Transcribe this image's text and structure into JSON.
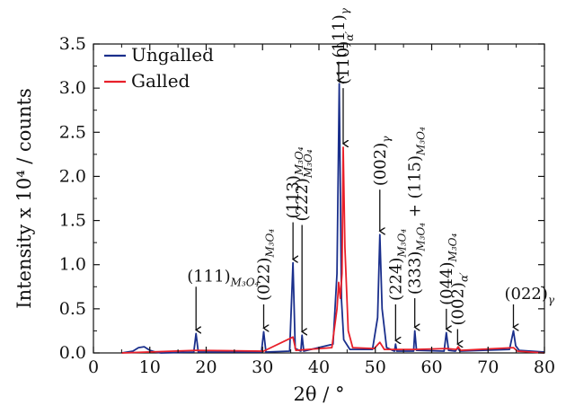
{
  "chart_data": {
    "type": "line",
    "xlabel": "2θ / °",
    "ylabel": "Intensity x 10⁴ / counts",
    "xlim": [
      0,
      80
    ],
    "ylim": [
      0,
      3.5
    ],
    "x_ticks": [
      "0",
      "10",
      "20",
      "30",
      "40",
      "50",
      "60",
      "70",
      "80"
    ],
    "y_ticks": [
      "0.0",
      "0.5",
      "1.0",
      "1.5",
      "2.0",
      "2.5",
      "3.0",
      "3.5"
    ],
    "grid": false,
    "legend": "top-left",
    "series": [
      {
        "name": "Ungalled",
        "color": "#1a2f8c",
        "points": [
          [
            5,
            0.0
          ],
          [
            7,
            0.02
          ],
          [
            8,
            0.06
          ],
          [
            9,
            0.07
          ],
          [
            10,
            0.03
          ],
          [
            11,
            0.01
          ],
          [
            12,
            0.0
          ],
          [
            17.8,
            0.01
          ],
          [
            18.2,
            0.22
          ],
          [
            18.6,
            0.01
          ],
          [
            29.8,
            0.01
          ],
          [
            30.2,
            0.24
          ],
          [
            30.6,
            0.01
          ],
          [
            34.8,
            0.02
          ],
          [
            35.4,
            1.02
          ],
          [
            35.8,
            0.05
          ],
          [
            36.8,
            0.02
          ],
          [
            37.0,
            0.2
          ],
          [
            37.3,
            0.02
          ],
          [
            42.5,
            0.1
          ],
          [
            43.2,
            0.9
          ],
          [
            43.6,
            3.05
          ],
          [
            44.0,
            0.6
          ],
          [
            44.4,
            0.15
          ],
          [
            45.5,
            0.04
          ],
          [
            49.5,
            0.04
          ],
          [
            50.4,
            0.4
          ],
          [
            50.8,
            1.34
          ],
          [
            51.2,
            0.5
          ],
          [
            52.0,
            0.06
          ],
          [
            53.4,
            0.02
          ],
          [
            53.6,
            0.1
          ],
          [
            53.8,
            0.02
          ],
          [
            56.8,
            0.02
          ],
          [
            57.0,
            0.25
          ],
          [
            57.3,
            0.03
          ],
          [
            62.2,
            0.02
          ],
          [
            62.6,
            0.23
          ],
          [
            63.0,
            0.03
          ],
          [
            64.2,
            0.02
          ],
          [
            64.6,
            0.06
          ],
          [
            65.0,
            0.02
          ],
          [
            73.8,
            0.04
          ],
          [
            74.5,
            0.25
          ],
          [
            74.9,
            0.08
          ],
          [
            75.5,
            0.03
          ],
          [
            80,
            0.01
          ]
        ]
      },
      {
        "name": "Galled",
        "color": "#e8202a",
        "points": [
          [
            5,
            0.0
          ],
          [
            18.2,
            0.03
          ],
          [
            30.2,
            0.02
          ],
          [
            35.4,
            0.18
          ],
          [
            35.9,
            0.03
          ],
          [
            42.3,
            0.06
          ],
          [
            43.2,
            0.5
          ],
          [
            43.5,
            0.8
          ],
          [
            43.8,
            0.62
          ],
          [
            44.1,
            0.9
          ],
          [
            44.3,
            2.33
          ],
          [
            44.6,
            1.2
          ],
          [
            45.2,
            0.25
          ],
          [
            46.0,
            0.06
          ],
          [
            49.8,
            0.05
          ],
          [
            50.8,
            0.12
          ],
          [
            51.6,
            0.04
          ],
          [
            57.0,
            0.04
          ],
          [
            62.6,
            0.05
          ],
          [
            64.4,
            0.04
          ],
          [
            64.7,
            0.07
          ],
          [
            65.1,
            0.03
          ],
          [
            74.5,
            0.06
          ],
          [
            75.2,
            0.02
          ],
          [
            80,
            0.0
          ]
        ]
      }
    ],
    "annotations": [
      {
        "x": 18.2,
        "y": 0.22,
        "label": "(111)",
        "sub": "M₃O₄",
        "orient": "h",
        "tail": 0.75
      },
      {
        "x": 30.2,
        "y": 0.24,
        "label": "(022)",
        "sub": "M₃O₄",
        "orient": "v",
        "tail": 0.55
      },
      {
        "x": 35.4,
        "y": 1.02,
        "label": "(113)",
        "sub": "M₃O₄",
        "orient": "v",
        "tail": 1.48
      },
      {
        "x": 37.0,
        "y": 0.2,
        "label": "(222)",
        "sub": "M₃O₄",
        "orient": "v",
        "tail": 1.45
      },
      {
        "x": 43.5,
        "y": 3.05,
        "label": "(111)",
        "sub": "γ",
        "orient": "v",
        "tail": 3.3
      },
      {
        "x": 44.3,
        "y": 2.33,
        "label": "(110)",
        "sub": "α′",
        "orient": "v",
        "tail": 3.0
      },
      {
        "x": 50.8,
        "y": 1.34,
        "label": "(002)",
        "sub": "γ",
        "orient": "v",
        "tail": 1.85
      },
      {
        "x": 53.6,
        "y": 0.1,
        "label": "(224)",
        "sub": "M₃O₄",
        "orient": "v",
        "tail": 0.55
      },
      {
        "x": 57.0,
        "y": 0.25,
        "label": "(333)",
        "sub": "M₃O₄",
        "extra": " + (115)",
        "extra_sub": "M₃O₄",
        "orient": "v",
        "tail": 0.62
      },
      {
        "x": 62.6,
        "y": 0.23,
        "label": "(044)",
        "sub": "M₃O₄",
        "orient": "v",
        "tail": 0.5
      },
      {
        "x": 64.6,
        "y": 0.06,
        "label": "(002)",
        "sub": "α′",
        "orient": "v",
        "tail": 0.27
      },
      {
        "x": 74.5,
        "y": 0.25,
        "label": "(022)",
        "sub": "γ",
        "orient": "h",
        "tail": 0.55
      }
    ]
  }
}
